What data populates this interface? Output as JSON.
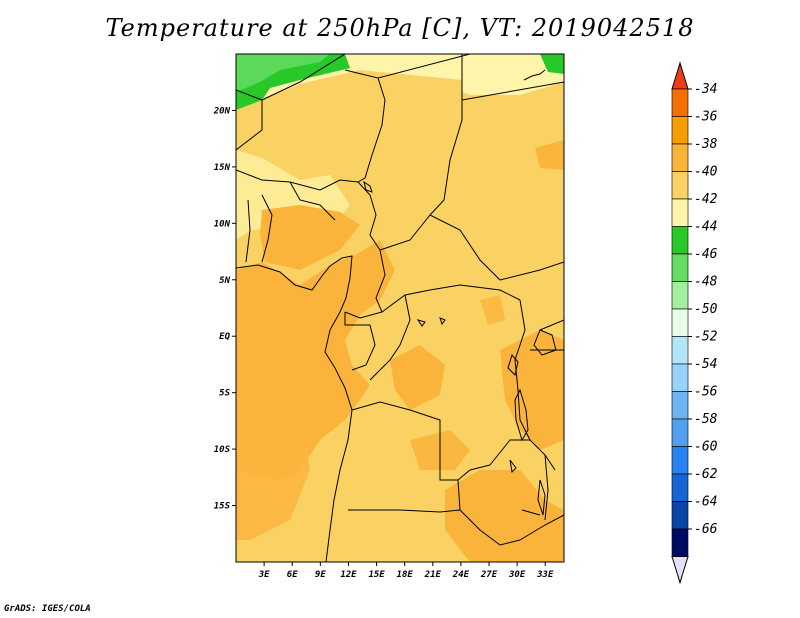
{
  "title": "Temperature at 250hPa [C], VT: 2019042518",
  "credit": "GrADS: IGES/COLA",
  "map": {
    "lon_range": [
      0,
      35
    ],
    "lat_range": [
      -20,
      25
    ],
    "x_ticks": [
      "3E",
      "6E",
      "9E",
      "12E",
      "15E",
      "18E",
      "21E",
      "24E",
      "27E",
      "30E",
      "33E"
    ],
    "x_tick_values": [
      3,
      6,
      9,
      12,
      15,
      18,
      21,
      24,
      27,
      30,
      33
    ],
    "y_ticks": [
      "20N",
      "15N",
      "10N",
      "5N",
      "EQ",
      "5S",
      "10S",
      "15S"
    ],
    "y_tick_values": [
      20,
      15,
      10,
      5,
      0,
      -5,
      -10,
      -15
    ],
    "field": "Temperature at 250hPa",
    "units": "C"
  },
  "colorbar": {
    "labels": [
      "-34",
      "-36",
      "-38",
      "-40",
      "-42",
      "-44",
      "-46",
      "-48",
      "-50",
      "-52",
      "-54",
      "-56",
      "-58",
      "-60",
      "-62",
      "-64",
      "-66"
    ],
    "colors": [
      "#f03c14",
      "#f56e00",
      "#f5a000",
      "#fab43c",
      "#fad264",
      "#fff5aa",
      "#28c828",
      "#64dc64",
      "#a0f0a0",
      "#e6ffe6",
      "#b4e6fa",
      "#96d2fa",
      "#6eb4f0",
      "#50a0f0",
      "#2882f0",
      "#1464d2",
      "#0a46aa",
      "#000a64",
      "#e1e1ff"
    ]
  }
}
